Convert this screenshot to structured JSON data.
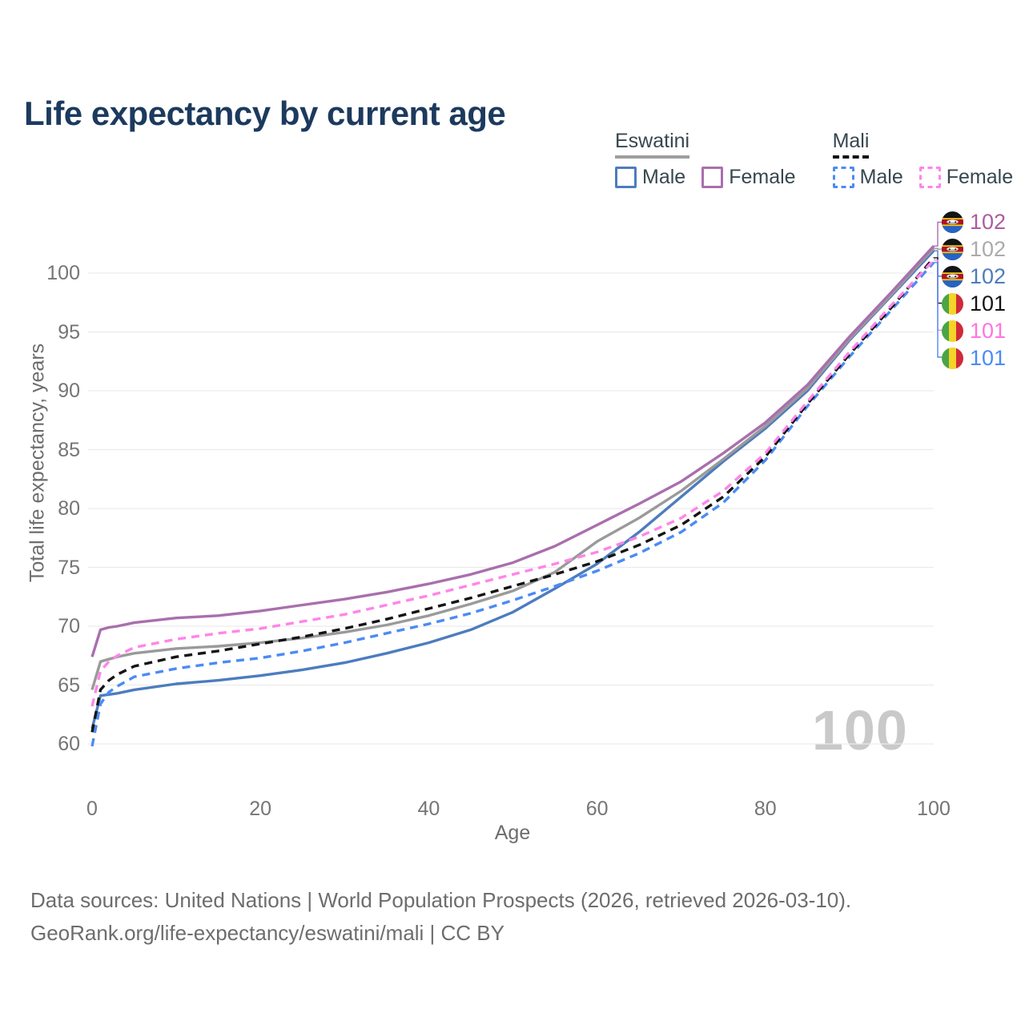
{
  "title": "Life expectancy by current age",
  "legend": {
    "groups": [
      {
        "country": "Eswatini",
        "line_style": "solid",
        "line_color": "#9e9e9e",
        "items": [
          {
            "label": "Male",
            "color": "#4d7cbe"
          },
          {
            "label": "Female",
            "color": "#a96fad"
          }
        ]
      },
      {
        "country": "Mali",
        "line_style": "dashed",
        "line_color": "#141414",
        "items": [
          {
            "label": "Male",
            "color": "#4b8bf4"
          },
          {
            "label": "Female",
            "color": "#ff85e8"
          }
        ]
      }
    ]
  },
  "watermark": "100",
  "footer": {
    "line1": "Data sources: United Nations | World Population Prospects (2026, retrieved 2026-03-10).",
    "line2": "GeoRank.org/life-expectancy/eswatini/mali | CC BY"
  },
  "chart_data": {
    "type": "line",
    "xlabel": "Age",
    "ylabel": "Total life expectancy, years",
    "x_ticks": [
      0,
      20,
      40,
      60,
      80,
      100
    ],
    "y_ticks": [
      60,
      65,
      70,
      75,
      80,
      85,
      90,
      95,
      100
    ],
    "xlim": [
      0,
      100
    ],
    "ylim": [
      60,
      100
    ],
    "grid": "horizontal",
    "x": [
      0,
      1,
      2,
      3,
      5,
      10,
      15,
      20,
      25,
      30,
      35,
      40,
      45,
      50,
      55,
      60,
      65,
      70,
      75,
      80,
      85,
      90,
      95,
      100
    ],
    "series": [
      {
        "name": "Eswatini Female",
        "country": "Eswatini",
        "sex": "Female",
        "color": "#a96fad",
        "dash": false,
        "end_label": "102",
        "end_label_color": "#ac5d9e",
        "flag": "eswatini",
        "values": [
          67.4,
          69.7,
          69.9,
          70.0,
          70.3,
          70.7,
          70.9,
          71.3,
          71.8,
          72.3,
          72.9,
          73.6,
          74.4,
          75.4,
          76.8,
          78.6,
          80.4,
          82.3,
          84.7,
          87.3,
          90.5,
          94.6,
          98.4,
          102.3
        ]
      },
      {
        "name": "Eswatini Both sexes",
        "country": "Eswatini",
        "sex": "Both",
        "color": "#9a9a9a",
        "dash": false,
        "end_label": "102",
        "end_label_color": "#ababab",
        "flag": "eswatini",
        "values": [
          64.6,
          67.0,
          67.2,
          67.4,
          67.7,
          68.1,
          68.3,
          68.6,
          69.0,
          69.5,
          70.1,
          70.9,
          71.9,
          73.0,
          74.6,
          77.2,
          79.2,
          81.5,
          84.2,
          87.0,
          90.2,
          94.4,
          98.2,
          102.1
        ]
      },
      {
        "name": "Eswatini Male",
        "country": "Eswatini",
        "sex": "Male",
        "color": "#4d7cbe",
        "dash": false,
        "end_label": "102",
        "end_label_color": "#4d7cbe",
        "flag": "eswatini",
        "values": [
          61.3,
          64.1,
          64.2,
          64.3,
          64.6,
          65.1,
          65.4,
          65.8,
          66.3,
          66.9,
          67.7,
          68.6,
          69.7,
          71.2,
          73.2,
          75.3,
          78.0,
          81.0,
          84.0,
          86.8,
          90.0,
          94.3,
          98.1,
          101.9
        ]
      },
      {
        "name": "Mali Both sexes",
        "country": "Mali",
        "sex": "Both",
        "color": "#141414",
        "dash": true,
        "end_label": "101",
        "end_label_color": "#141414",
        "flag": "mali",
        "values": [
          61.0,
          64.6,
          65.4,
          65.9,
          66.6,
          67.4,
          67.9,
          68.5,
          69.1,
          69.8,
          70.6,
          71.5,
          72.4,
          73.4,
          74.4,
          75.5,
          76.9,
          78.6,
          81.0,
          84.4,
          88.9,
          93.1,
          97.1,
          101.3
        ]
      },
      {
        "name": "Mali Female",
        "country": "Mali",
        "sex": "Female",
        "color": "#ff85e8",
        "dash": true,
        "end_label": "101",
        "end_label_color": "#ff74e1",
        "flag": "mali",
        "values": [
          63.2,
          66.2,
          67.0,
          67.5,
          68.2,
          68.9,
          69.4,
          69.8,
          70.4,
          71.0,
          71.8,
          72.6,
          73.5,
          74.4,
          75.3,
          76.3,
          77.6,
          79.2,
          81.5,
          84.7,
          89.1,
          93.3,
          97.3,
          101.1
        ]
      },
      {
        "name": "Mali Male",
        "country": "Mali",
        "sex": "Male",
        "color": "#4b8bf4",
        "dash": true,
        "end_label": "101",
        "end_label_color": "#4b8bf4",
        "flag": "mali",
        "values": [
          59.8,
          63.4,
          64.4,
          64.9,
          65.7,
          66.4,
          66.9,
          67.3,
          67.9,
          68.6,
          69.4,
          70.2,
          71.1,
          72.2,
          73.4,
          74.7,
          76.2,
          78.0,
          80.5,
          84.1,
          88.7,
          92.9,
          96.9,
          100.9
        ]
      }
    ]
  }
}
